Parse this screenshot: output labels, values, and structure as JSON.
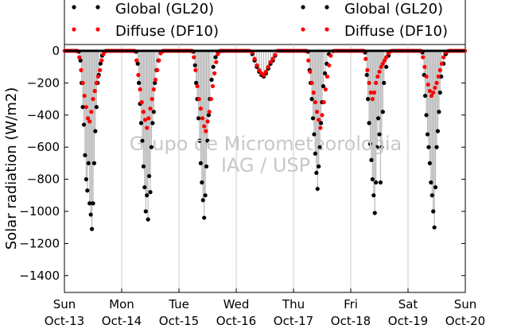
{
  "chart_data": {
    "type": "scatter",
    "ylabel": "Solar radiation (W/m2)",
    "ylim": [
      -1500,
      0
    ],
    "yticks": [
      0,
      -200,
      -400,
      -600,
      -800,
      -1000,
      -1200,
      -1400
    ],
    "xlim": [
      0,
      7
    ],
    "xticks": [
      {
        "day": "Sun",
        "date": "Oct-13"
      },
      {
        "day": "Mon",
        "date": "Oct-14"
      },
      {
        "day": "Tue",
        "date": "Oct-15"
      },
      {
        "day": "Wed",
        "date": "Oct-16"
      },
      {
        "day": "Thu",
        "date": "Oct-17"
      },
      {
        "day": "Fri",
        "date": "Oct-18"
      },
      {
        "day": "Sat",
        "date": "Oct-19"
      },
      {
        "day": "Sun",
        "date": "Oct-20"
      }
    ],
    "grid": "vertical",
    "watermark": [
      "Grupo de Micrometeorologia",
      "IAG / USP"
    ],
    "legend": [
      {
        "label": "Global (GL20)",
        "color": "#000000"
      },
      {
        "label": "Diffuse (DF10)",
        "color": "#ff0000"
      }
    ],
    "legend_position": "top, outside plot, two columns",
    "series": [
      {
        "name": "Global (GL20)",
        "color": "#000000",
        "peak_per_day": [
          -1110,
          -1050,
          -1040,
          -160,
          -860,
          -1010,
          -1100
        ],
        "points": [
          [
            0.25,
            -5
          ],
          [
            0.28,
            -60
          ],
          [
            0.3,
            -200
          ],
          [
            0.32,
            -350
          ],
          [
            0.34,
            -460
          ],
          [
            0.36,
            -650
          ],
          [
            0.38,
            -800
          ],
          [
            0.4,
            -870
          ],
          [
            0.42,
            -700
          ],
          [
            0.44,
            -950
          ],
          [
            0.46,
            -1020
          ],
          [
            0.48,
            -1110
          ],
          [
            0.5,
            -950
          ],
          [
            0.52,
            -700
          ],
          [
            0.54,
            -500
          ],
          [
            0.56,
            -350
          ],
          [
            0.58,
            -200
          ],
          [
            0.6,
            -150
          ],
          [
            0.63,
            -80
          ],
          [
            0.66,
            -30
          ],
          [
            0.7,
            -5
          ],
          [
            1.25,
            -5
          ],
          [
            1.28,
            -80
          ],
          [
            1.3,
            -200
          ],
          [
            1.32,
            -330
          ],
          [
            1.34,
            -450
          ],
          [
            1.36,
            -560
          ],
          [
            1.38,
            -720
          ],
          [
            1.4,
            -850
          ],
          [
            1.42,
            -1000
          ],
          [
            1.44,
            -900
          ],
          [
            1.46,
            -1050
          ],
          [
            1.48,
            -780
          ],
          [
            1.5,
            -880
          ],
          [
            1.52,
            -600
          ],
          [
            1.54,
            -450
          ],
          [
            1.56,
            -380
          ],
          [
            1.58,
            -200
          ],
          [
            1.61,
            -120
          ],
          [
            1.64,
            -60
          ],
          [
            1.68,
            -10
          ],
          [
            2.25,
            -5
          ],
          [
            2.28,
            -90
          ],
          [
            2.3,
            -200
          ],
          [
            2.32,
            -300
          ],
          [
            2.34,
            -420
          ],
          [
            2.36,
            -560
          ],
          [
            2.38,
            -700
          ],
          [
            2.4,
            -820
          ],
          [
            2.42,
            -930
          ],
          [
            2.44,
            -1040
          ],
          [
            2.46,
            -900
          ],
          [
            2.48,
            -720
          ],
          [
            2.5,
            -560
          ],
          [
            2.52,
            -400
          ],
          [
            2.54,
            -300
          ],
          [
            2.57,
            -180
          ],
          [
            2.6,
            -100
          ],
          [
            2.64,
            -40
          ],
          [
            2.68,
            -5
          ],
          [
            3.28,
            -20
          ],
          [
            3.32,
            -60
          ],
          [
            3.36,
            -100
          ],
          [
            3.4,
            -130
          ],
          [
            3.44,
            -150
          ],
          [
            3.48,
            -160
          ],
          [
            3.52,
            -140
          ],
          [
            3.56,
            -110
          ],
          [
            3.6,
            -80
          ],
          [
            3.64,
            -60
          ],
          [
            3.68,
            -30
          ],
          [
            4.25,
            -5
          ],
          [
            4.28,
            -120
          ],
          [
            4.3,
            -200
          ],
          [
            4.32,
            -300
          ],
          [
            4.34,
            -420
          ],
          [
            4.36,
            -520
          ],
          [
            4.38,
            -640
          ],
          [
            4.4,
            -760
          ],
          [
            4.42,
            -860
          ],
          [
            4.44,
            -720
          ],
          [
            4.46,
            -600
          ],
          [
            4.48,
            -450
          ],
          [
            4.5,
            -320
          ],
          [
            4.52,
            -220
          ],
          [
            4.55,
            -140
          ],
          [
            4.58,
            -80
          ],
          [
            4.62,
            -20
          ],
          [
            5.25,
            -10
          ],
          [
            5.28,
            -150
          ],
          [
            5.3,
            -300
          ],
          [
            5.32,
            -450
          ],
          [
            5.34,
            -580
          ],
          [
            5.36,
            -680
          ],
          [
            5.38,
            -800
          ],
          [
            5.4,
            -900
          ],
          [
            5.42,
            -1010
          ],
          [
            5.44,
            -820
          ],
          [
            5.46,
            -600
          ],
          [
            5.48,
            -420
          ],
          [
            5.5,
            -520
          ],
          [
            5.52,
            -820
          ],
          [
            5.54,
            -600
          ],
          [
            5.56,
            -380
          ],
          [
            5.58,
            -200
          ],
          [
            5.62,
            -100
          ],
          [
            5.66,
            -30
          ],
          [
            6.25,
            -10
          ],
          [
            6.28,
            -150
          ],
          [
            6.3,
            -280
          ],
          [
            6.32,
            -400
          ],
          [
            6.34,
            -520
          ],
          [
            6.36,
            -600
          ],
          [
            6.38,
            -700
          ],
          [
            6.4,
            -820
          ],
          [
            6.42,
            -900
          ],
          [
            6.44,
            -1000
          ],
          [
            6.46,
            -1100
          ],
          [
            6.48,
            -850
          ],
          [
            6.5,
            -600
          ],
          [
            6.52,
            -500
          ],
          [
            6.54,
            -380
          ],
          [
            6.56,
            -260
          ],
          [
            6.58,
            -160
          ],
          [
            6.62,
            -80
          ],
          [
            6.66,
            -20
          ]
        ]
      },
      {
        "name": "Diffuse (DF10)",
        "color": "#ff0000",
        "points": [
          [
            0.22,
            -2
          ],
          [
            0.26,
            -40
          ],
          [
            0.29,
            -120
          ],
          [
            0.32,
            -200
          ],
          [
            0.35,
            -280
          ],
          [
            0.38,
            -350
          ],
          [
            0.41,
            -420
          ],
          [
            0.44,
            -440
          ],
          [
            0.47,
            -380
          ],
          [
            0.5,
            -300
          ],
          [
            0.53,
            -250
          ],
          [
            0.56,
            -200
          ],
          [
            0.59,
            -160
          ],
          [
            0.62,
            -120
          ],
          [
            0.65,
            -60
          ],
          [
            0.68,
            -20
          ],
          [
            0.72,
            -2
          ],
          [
            1.22,
            -2
          ],
          [
            1.26,
            -60
          ],
          [
            1.29,
            -150
          ],
          [
            1.32,
            -240
          ],
          [
            1.35,
            -320
          ],
          [
            1.38,
            -380
          ],
          [
            1.41,
            -430
          ],
          [
            1.44,
            -480
          ],
          [
            1.47,
            -420
          ],
          [
            1.5,
            -360
          ],
          [
            1.53,
            -300
          ],
          [
            1.56,
            -240
          ],
          [
            1.59,
            -180
          ],
          [
            1.62,
            -120
          ],
          [
            1.65,
            -60
          ],
          [
            1.68,
            -15
          ],
          [
            1.72,
            -2
          ],
          [
            2.22,
            -2
          ],
          [
            2.26,
            -40
          ],
          [
            2.29,
            -120
          ],
          [
            2.32,
            -220
          ],
          [
            2.35,
            -300
          ],
          [
            2.38,
            -360
          ],
          [
            2.41,
            -420
          ],
          [
            2.44,
            -470
          ],
          [
            2.47,
            -500
          ],
          [
            2.5,
            -440
          ],
          [
            2.53,
            -380
          ],
          [
            2.56,
            -300
          ],
          [
            2.59,
            -220
          ],
          [
            2.62,
            -140
          ],
          [
            2.65,
            -70
          ],
          [
            2.68,
            -20
          ],
          [
            2.72,
            -2
          ],
          [
            3.28,
            -10
          ],
          [
            3.32,
            -50
          ],
          [
            3.36,
            -90
          ],
          [
            3.4,
            -120
          ],
          [
            3.44,
            -140
          ],
          [
            3.48,
            -150
          ],
          [
            3.52,
            -130
          ],
          [
            3.56,
            -100
          ],
          [
            3.6,
            -70
          ],
          [
            3.64,
            -50
          ],
          [
            3.68,
            -25
          ],
          [
            4.22,
            -2
          ],
          [
            4.26,
            -60
          ],
          [
            4.29,
            -130
          ],
          [
            4.32,
            -200
          ],
          [
            4.35,
            -260
          ],
          [
            4.38,
            -320
          ],
          [
            4.41,
            -380
          ],
          [
            4.44,
            -430
          ],
          [
            4.47,
            -480
          ],
          [
            4.5,
            -400
          ],
          [
            4.53,
            -320
          ],
          [
            4.56,
            -240
          ],
          [
            4.59,
            -160
          ],
          [
            4.62,
            -90
          ],
          [
            4.65,
            -30
          ],
          [
            4.69,
            -2
          ],
          [
            5.22,
            -2
          ],
          [
            5.26,
            -50
          ],
          [
            5.29,
            -120
          ],
          [
            5.32,
            -200
          ],
          [
            5.35,
            -260
          ],
          [
            5.38,
            -300
          ],
          [
            5.41,
            -260
          ],
          [
            5.44,
            -200
          ],
          [
            5.47,
            -160
          ],
          [
            5.5,
            -130
          ],
          [
            5.53,
            -100
          ],
          [
            5.56,
            -80
          ],
          [
            5.59,
            -60
          ],
          [
            5.62,
            -40
          ],
          [
            5.66,
            -15
          ],
          [
            5.7,
            -2
          ],
          [
            6.22,
            -2
          ],
          [
            6.26,
            -40
          ],
          [
            6.29,
            -100
          ],
          [
            6.32,
            -160
          ],
          [
            6.35,
            -210
          ],
          [
            6.38,
            -250
          ],
          [
            6.41,
            -280
          ],
          [
            6.44,
            -260
          ],
          [
            6.47,
            -230
          ],
          [
            6.5,
            -200
          ],
          [
            6.53,
            -160
          ],
          [
            6.56,
            -120
          ],
          [
            6.59,
            -80
          ],
          [
            6.62,
            -40
          ],
          [
            6.66,
            -10
          ],
          [
            6.7,
            -2
          ]
        ]
      }
    ]
  }
}
